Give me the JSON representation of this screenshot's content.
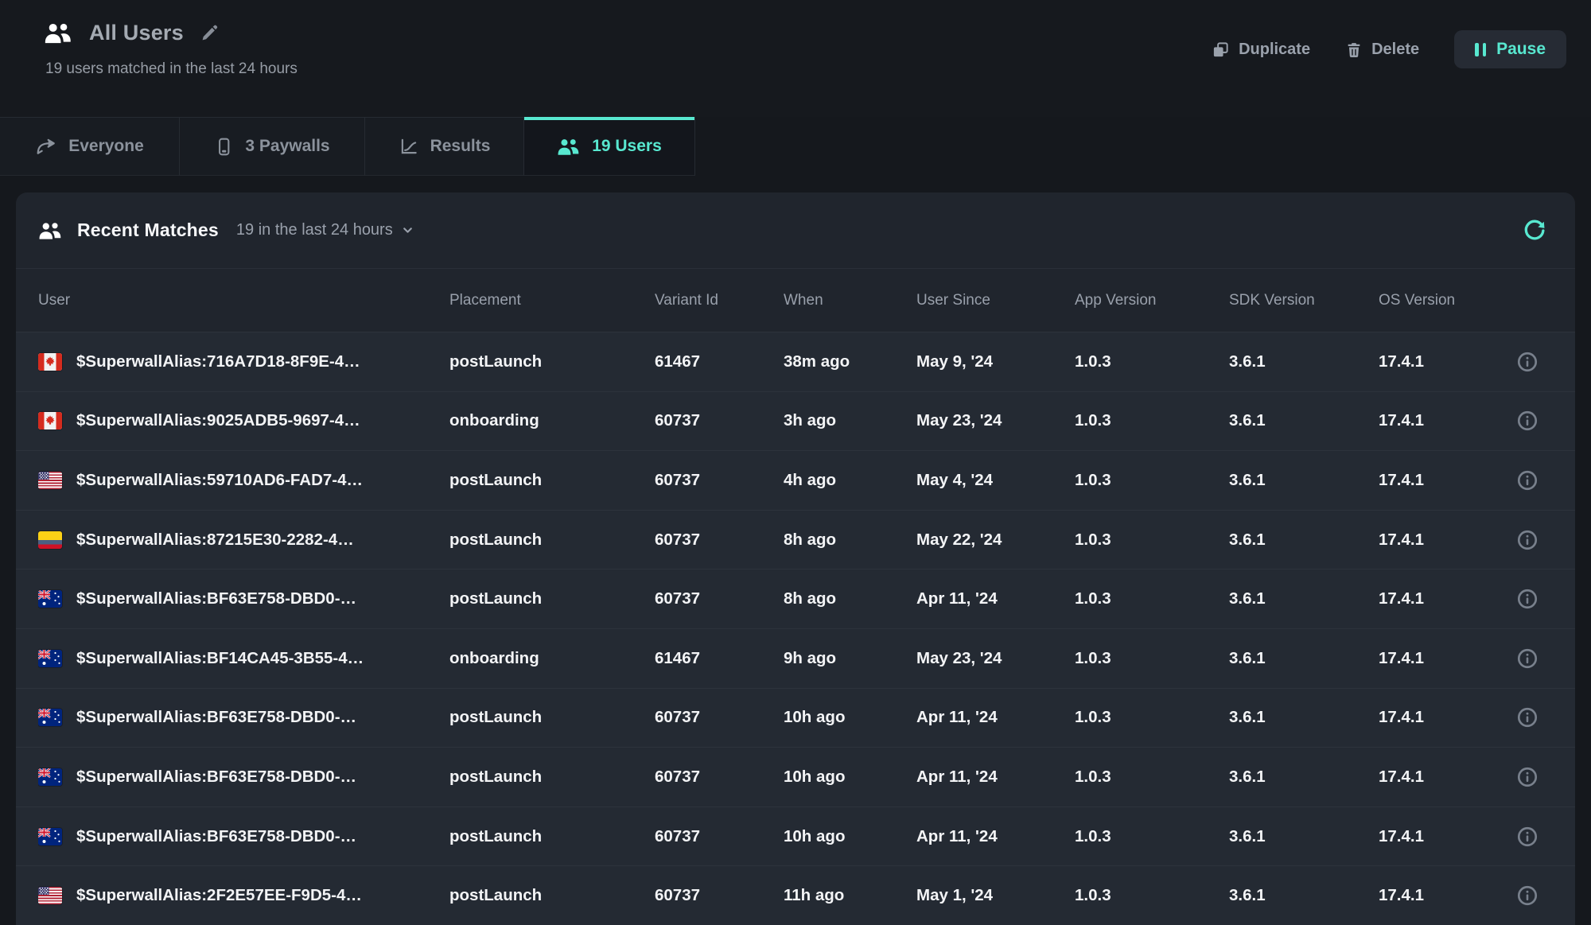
{
  "colors": {
    "accent": "#58E8D0"
  },
  "header": {
    "icon": "users-icon",
    "title": "All Users",
    "edit_icon": "pencil-icon",
    "subtitle": "19 users matched in the last 24 hours",
    "actions": {
      "duplicate_label": "Duplicate",
      "duplicate_icon": "copy-icon",
      "delete_label": "Delete",
      "delete_icon": "trash-icon",
      "pause_label": "Pause",
      "pause_icon": "pause-icon"
    }
  },
  "tabs": [
    {
      "label": "Everyone",
      "icon": "route-icon",
      "active": false
    },
    {
      "label": "3 Paywalls",
      "icon": "phone-icon",
      "active": false
    },
    {
      "label": "Results",
      "icon": "chart-icon",
      "active": false
    },
    {
      "label": "19 Users",
      "icon": "users-icon",
      "active": true
    }
  ],
  "panel": {
    "icon": "users-icon",
    "title": "Recent Matches",
    "subtitle": "19 in the last 24 hours",
    "subtitle_chevron_icon": "chevron-down-icon",
    "refresh_icon": "refresh-icon",
    "row_info_icon": "info-icon",
    "columns": [
      "User",
      "Placement",
      "Variant Id",
      "When",
      "User Since",
      "App Version",
      "SDK Version",
      "OS Version"
    ],
    "rows": [
      {
        "flag": "canada-flag",
        "user": "$SuperwallAlias:716A7D18-8F9E-4…",
        "placement": "postLaunch",
        "variant_id": "61467",
        "when": "38m ago",
        "user_since": "May 9, '24",
        "app_version": "1.0.3",
        "sdk_version": "3.6.1",
        "os_version": "17.4.1"
      },
      {
        "flag": "canada-flag",
        "user": "$SuperwallAlias:9025ADB5-9697-4…",
        "placement": "onboarding",
        "variant_id": "60737",
        "when": "3h ago",
        "user_since": "May 23, '24",
        "app_version": "1.0.3",
        "sdk_version": "3.6.1",
        "os_version": "17.4.1"
      },
      {
        "flag": "usa-flag",
        "user": "$SuperwallAlias:59710AD6-FAD7-4…",
        "placement": "postLaunch",
        "variant_id": "60737",
        "when": "4h ago",
        "user_since": "May 4, '24",
        "app_version": "1.0.3",
        "sdk_version": "3.6.1",
        "os_version": "17.4.1"
      },
      {
        "flag": "colombia-flag",
        "user": "$SuperwallAlias:87215E30-2282-4…",
        "placement": "postLaunch",
        "variant_id": "60737",
        "when": "8h ago",
        "user_since": "May 22, '24",
        "app_version": "1.0.3",
        "sdk_version": "3.6.1",
        "os_version": "17.4.1"
      },
      {
        "flag": "australia-flag",
        "user": "$SuperwallAlias:BF63E758-DBD0-…",
        "placement": "postLaunch",
        "variant_id": "60737",
        "when": "8h ago",
        "user_since": "Apr 11, '24",
        "app_version": "1.0.3",
        "sdk_version": "3.6.1",
        "os_version": "17.4.1"
      },
      {
        "flag": "australia-flag",
        "user": "$SuperwallAlias:BF14CA45-3B55-4…",
        "placement": "onboarding",
        "variant_id": "61467",
        "when": "9h ago",
        "user_since": "May 23, '24",
        "app_version": "1.0.3",
        "sdk_version": "3.6.1",
        "os_version": "17.4.1"
      },
      {
        "flag": "australia-flag",
        "user": "$SuperwallAlias:BF63E758-DBD0-…",
        "placement": "postLaunch",
        "variant_id": "60737",
        "when": "10h ago",
        "user_since": "Apr 11, '24",
        "app_version": "1.0.3",
        "sdk_version": "3.6.1",
        "os_version": "17.4.1"
      },
      {
        "flag": "australia-flag",
        "user": "$SuperwallAlias:BF63E758-DBD0-…",
        "placement": "postLaunch",
        "variant_id": "60737",
        "when": "10h ago",
        "user_since": "Apr 11, '24",
        "app_version": "1.0.3",
        "sdk_version": "3.6.1",
        "os_version": "17.4.1"
      },
      {
        "flag": "australia-flag",
        "user": "$SuperwallAlias:BF63E758-DBD0-…",
        "placement": "postLaunch",
        "variant_id": "60737",
        "when": "10h ago",
        "user_since": "Apr 11, '24",
        "app_version": "1.0.3",
        "sdk_version": "3.6.1",
        "os_version": "17.4.1"
      },
      {
        "flag": "usa-flag",
        "user": "$SuperwallAlias:2F2E57EE-F9D5-4…",
        "placement": "postLaunch",
        "variant_id": "60737",
        "when": "11h ago",
        "user_since": "May 1, '24",
        "app_version": "1.0.3",
        "sdk_version": "3.6.1",
        "os_version": "17.4.1"
      }
    ]
  }
}
